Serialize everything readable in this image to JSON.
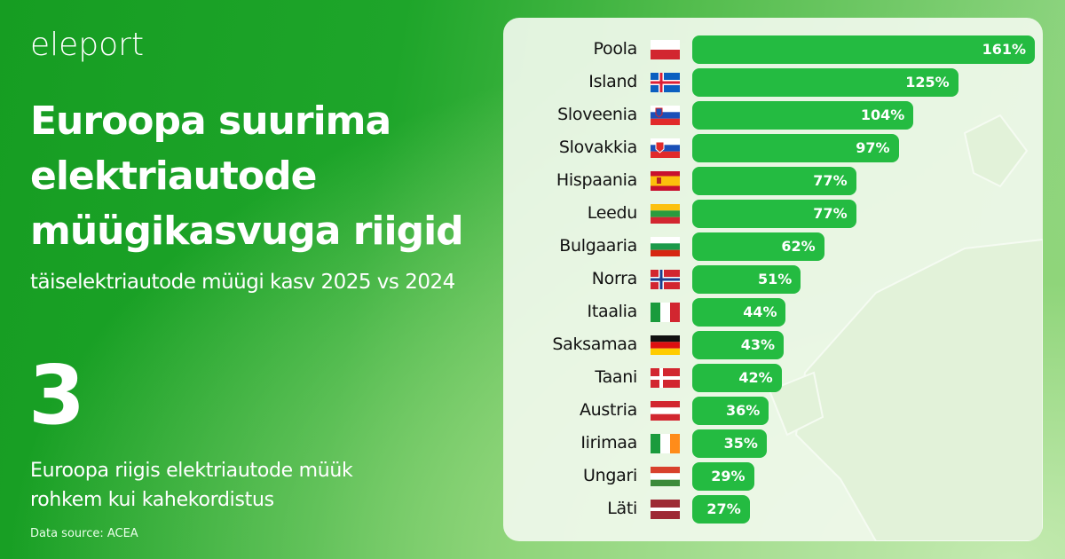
{
  "brand": "eleport",
  "header": {
    "title": "Euroopa suurima elektriautode müügikasvuga riigid",
    "subtitle": "täiselektriautode müügi kasv 2025 vs 2024"
  },
  "highlight": {
    "number": "3",
    "text": "Euroopa riigis elektriautode müük rohkem kui kahekordistus"
  },
  "source": "Data source: ACEA",
  "colors": {
    "bar": "#24bb41",
    "background": "#1ea52a"
  },
  "chart_data": {
    "type": "bar",
    "orientation": "horizontal",
    "categories": [
      "Poola",
      "Island",
      "Sloveenia",
      "Slovakkia",
      "Hispaania",
      "Leedu",
      "Bulgaaria",
      "Norra",
      "Itaalia",
      "Saksamaa",
      "Taani",
      "Austria",
      "Iirimaa",
      "Ungari",
      "Läti"
    ],
    "flags": [
      "poland",
      "iceland",
      "slovenia",
      "slovakia",
      "spain",
      "lithuania",
      "bulgaria",
      "norway",
      "italy",
      "germany",
      "denmark",
      "austria",
      "ireland",
      "hungary",
      "latvia"
    ],
    "values": [
      161,
      125,
      104,
      97,
      77,
      77,
      62,
      51,
      44,
      43,
      42,
      36,
      35,
      29,
      27
    ],
    "labels": [
      "161%",
      "125%",
      "104%",
      "97%",
      "77%",
      "77%",
      "62%",
      "51%",
      "44%",
      "43%",
      "42%",
      "36%",
      "35%",
      "29%",
      "27%"
    ],
    "unit": "%"
  }
}
